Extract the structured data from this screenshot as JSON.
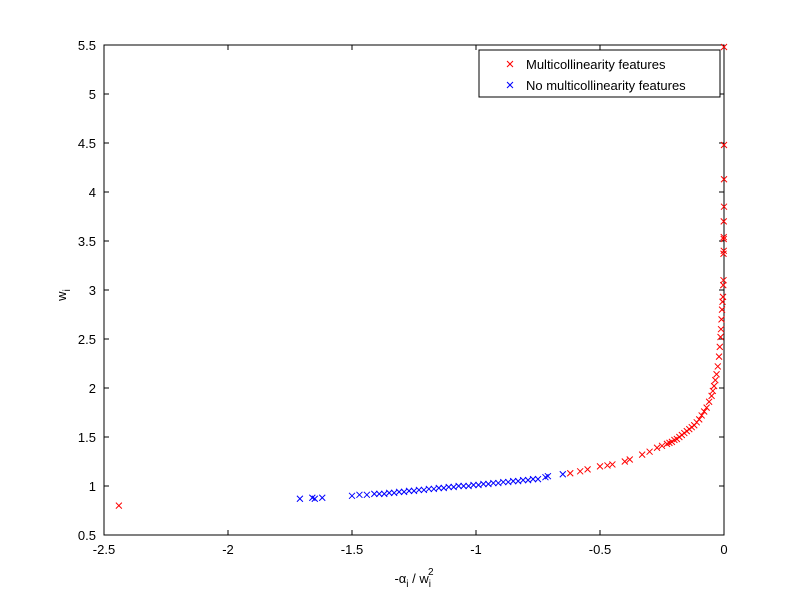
{
  "chart_data": {
    "type": "scatter",
    "title": "",
    "xlabel": {
      "pre": "-",
      "alpha": "α",
      "alpha_sub": "i",
      "mid": " / w",
      "w_sub": "i",
      "w_sup": "2"
    },
    "ylabel": {
      "base": "w",
      "sub": "i"
    },
    "xlim": [
      -2.5,
      0
    ],
    "ylim": [
      0.5,
      5.5
    ],
    "xticks": [
      -2.5,
      -2,
      -1.5,
      -1,
      -0.5,
      0
    ],
    "xticklabels": [
      "-2.5",
      "-2",
      "-1.5",
      "-1",
      "-0.5",
      "0"
    ],
    "yticks": [
      0.5,
      1,
      1.5,
      2,
      2.5,
      3,
      3.5,
      4,
      4.5,
      5,
      5.5
    ],
    "yticklabels": [
      "0.5",
      "1",
      "1.5",
      "2",
      "2.5",
      "3",
      "3.5",
      "4",
      "4.5",
      "5",
      "5.5"
    ],
    "marker": "x",
    "grid": false,
    "legend_position": "top-right",
    "series": [
      {
        "name": "Multicollinearity features",
        "color": "#ff0000",
        "points": [
          [
            -2.44,
            0.8
          ],
          [
            -0.62,
            1.13
          ],
          [
            -0.58,
            1.15
          ],
          [
            -0.55,
            1.17
          ],
          [
            -0.5,
            1.2
          ],
          [
            -0.47,
            1.21
          ],
          [
            -0.45,
            1.22
          ],
          [
            -0.4,
            1.25
          ],
          [
            -0.38,
            1.27
          ],
          [
            -0.33,
            1.32
          ],
          [
            -0.3,
            1.35
          ],
          [
            -0.27,
            1.39
          ],
          [
            -0.25,
            1.41
          ],
          [
            -0.23,
            1.43
          ],
          [
            -0.22,
            1.44
          ],
          [
            -0.21,
            1.45
          ],
          [
            -0.2,
            1.47
          ],
          [
            -0.19,
            1.48
          ],
          [
            -0.18,
            1.5
          ],
          [
            -0.17,
            1.52
          ],
          [
            -0.16,
            1.54
          ],
          [
            -0.15,
            1.56
          ],
          [
            -0.14,
            1.58
          ],
          [
            -0.13,
            1.6
          ],
          [
            -0.12,
            1.62
          ],
          [
            -0.11,
            1.65
          ],
          [
            -0.1,
            1.68
          ],
          [
            -0.09,
            1.72
          ],
          [
            -0.08,
            1.76
          ],
          [
            -0.07,
            1.8
          ],
          [
            -0.06,
            1.86
          ],
          [
            -0.05,
            1.92
          ],
          [
            -0.045,
            1.97
          ],
          [
            -0.04,
            2.02
          ],
          [
            -0.035,
            2.08
          ],
          [
            -0.03,
            2.14
          ],
          [
            -0.025,
            2.22
          ],
          [
            -0.02,
            2.32
          ],
          [
            -0.017,
            2.42
          ],
          [
            -0.014,
            2.52
          ],
          [
            -0.012,
            2.6
          ],
          [
            -0.01,
            2.7
          ],
          [
            -0.008,
            2.8
          ],
          [
            -0.006,
            2.88
          ],
          [
            -0.004,
            2.93
          ],
          [
            -0.003,
            3.05
          ],
          [
            -0.002,
            3.1
          ],
          [
            -0.002,
            3.37
          ],
          [
            -0.001,
            3.4
          ],
          [
            -0.001,
            3.52
          ],
          [
            -0.001,
            3.54
          ],
          [
            -0.001,
            3.7
          ],
          [
            0.0,
            3.85
          ],
          [
            0.0,
            4.13
          ],
          [
            0.0,
            4.48
          ],
          [
            0.0,
            5.48
          ]
        ]
      },
      {
        "name": "No multicollinearity features",
        "color": "#0000ff",
        "points": [
          [
            -1.71,
            0.87
          ],
          [
            -1.66,
            0.88
          ],
          [
            -1.65,
            0.87
          ],
          [
            -1.62,
            0.88
          ],
          [
            -1.5,
            0.9
          ],
          [
            -1.47,
            0.91
          ],
          [
            -1.44,
            0.91
          ],
          [
            -1.41,
            0.92
          ],
          [
            -1.39,
            0.92
          ],
          [
            -1.37,
            0.92
          ],
          [
            -1.35,
            0.93
          ],
          [
            -1.33,
            0.93
          ],
          [
            -1.31,
            0.94
          ],
          [
            -1.29,
            0.94
          ],
          [
            -1.27,
            0.95
          ],
          [
            -1.25,
            0.95
          ],
          [
            -1.23,
            0.96
          ],
          [
            -1.21,
            0.96
          ],
          [
            -1.19,
            0.97
          ],
          [
            -1.17,
            0.97
          ],
          [
            -1.15,
            0.98
          ],
          [
            -1.13,
            0.98
          ],
          [
            -1.11,
            0.99
          ],
          [
            -1.09,
            0.99
          ],
          [
            -1.07,
            1.0
          ],
          [
            -1.05,
            1.0
          ],
          [
            -1.03,
            1.0
          ],
          [
            -1.01,
            1.01
          ],
          [
            -0.99,
            1.01
          ],
          [
            -0.97,
            1.02
          ],
          [
            -0.95,
            1.02
          ],
          [
            -0.93,
            1.03
          ],
          [
            -0.91,
            1.03
          ],
          [
            -0.89,
            1.04
          ],
          [
            -0.87,
            1.04
          ],
          [
            -0.85,
            1.05
          ],
          [
            -0.83,
            1.05
          ],
          [
            -0.81,
            1.06
          ],
          [
            -0.79,
            1.06
          ],
          [
            -0.77,
            1.07
          ],
          [
            -0.75,
            1.07
          ],
          [
            -0.72,
            1.09
          ],
          [
            -0.71,
            1.1
          ],
          [
            -0.65,
            1.12
          ]
        ]
      }
    ]
  }
}
